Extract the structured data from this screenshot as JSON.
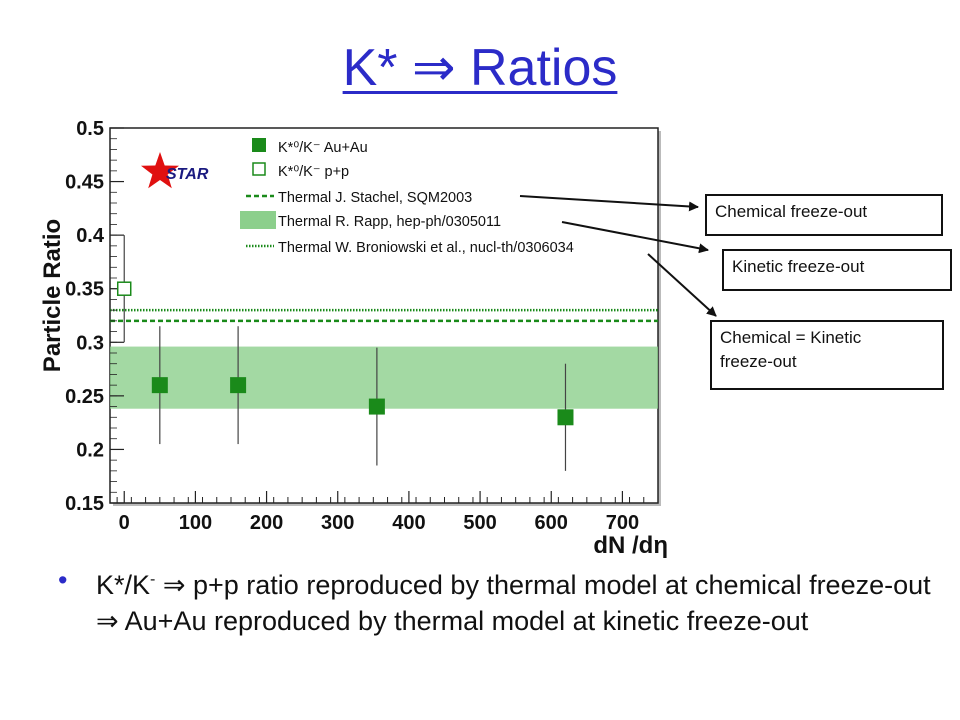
{
  "slide": {
    "title": "K* ⇒ Ratios",
    "bullet": {
      "k": "K*/K",
      "k_sup": "-",
      "arrow1": " ⇒ ",
      "part1": "p+p ratio reproduced by thermal model at chemical freeze-out",
      "arrow2": " ⇒ ",
      "part2": "Au+Au reproduced by thermal model at kinetic freeze-out"
    },
    "callouts": {
      "chemical": "Chemical freeze-out",
      "kinetic": "Kinetic freeze-out",
      "chem_kin_line1": "Chemical = Kinetic",
      "chem_kin_line2": "freeze-out"
    }
  },
  "chart_data": {
    "type": "scatter",
    "ylabel": "Particle Ratio",
    "xlabel": "dN   /dη",
    "xlim": [
      -20,
      750
    ],
    "ylim": [
      0.15,
      0.5
    ],
    "xticks": [
      "0",
      "100",
      "200",
      "300",
      "400",
      "500",
      "600",
      "700"
    ],
    "yticks": [
      "0.15",
      "0.2",
      "0.25",
      "0.3",
      "0.35",
      "0.4",
      "0.45",
      "0.5"
    ],
    "grid": false,
    "logo": "STAR",
    "legend_position": "top-right",
    "series": [
      {
        "name": "K*⁰/K⁻ Au+Au",
        "marker": "filled-square",
        "color": "#1a8a1a",
        "points": [
          {
            "x": 50,
            "y": 0.26,
            "yerr_low": 0.205,
            "yerr_high": 0.315
          },
          {
            "x": 160,
            "y": 0.26,
            "yerr_low": 0.205,
            "yerr_high": 0.315
          },
          {
            "x": 355,
            "y": 0.24,
            "yerr_low": 0.185,
            "yerr_high": 0.295
          },
          {
            "x": 620,
            "y": 0.23,
            "yerr_low": 0.18,
            "yerr_high": 0.28
          }
        ]
      },
      {
        "name": "K*⁰/K⁻ p+p",
        "marker": "open-square",
        "color": "#1a8a1a",
        "points": [
          {
            "x": 0,
            "y": 0.35,
            "yerr_low": 0.3,
            "yerr_high": 0.4
          }
        ]
      }
    ],
    "bands": [
      {
        "name": "Thermal J. Stachel, SQM2003",
        "style": "dashed-line",
        "color": "#1a8a1a",
        "y": 0.32
      },
      {
        "name": "Thermal R. Rapp, hep-ph/0305011",
        "style": "band",
        "color": "#8ccf8c",
        "y_low": 0.238,
        "y_high": 0.296
      },
      {
        "name": "Thermal W. Broniowski et al., nucl-th/0306034",
        "style": "dotted-line",
        "color": "#1a8a1a",
        "y": 0.33
      }
    ]
  }
}
